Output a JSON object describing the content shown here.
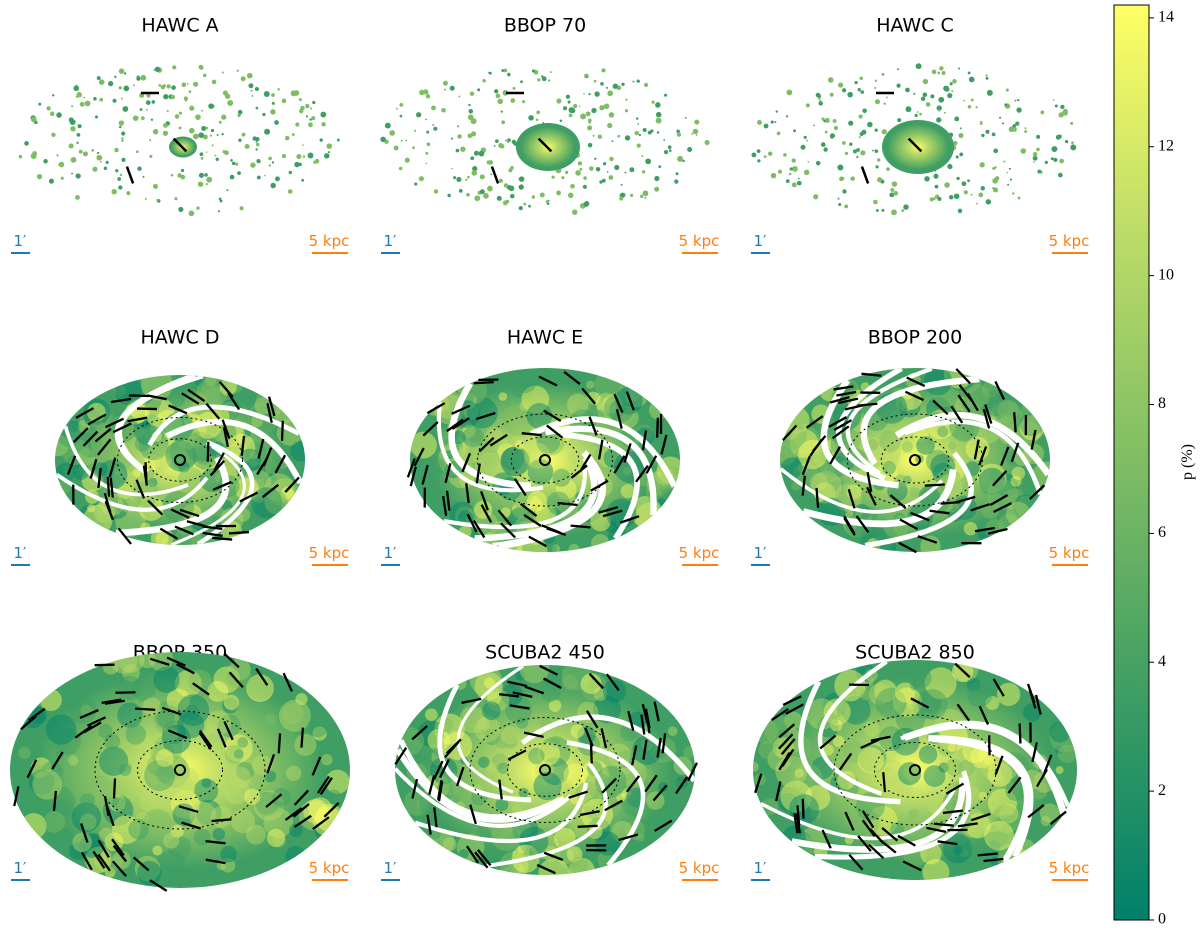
{
  "chart_data": {
    "type": "heatmap",
    "panels": [
      "HAWC A",
      "BBOP 70",
      "HAWC C",
      "HAWC D",
      "HAWC E",
      "BBOP 200",
      "BBOP 350",
      "SCUBA2 450",
      "SCUBA2 850"
    ],
    "scale_bars": {
      "angle": "1′",
      "angle_color": "#1f77b4",
      "distance": "5 kpc",
      "distance_color": "#ff7f0e"
    },
    "colorbar": {
      "label": "p (%)",
      "ylim": [
        0,
        14.2
      ],
      "yticks": [
        0,
        2,
        4,
        6,
        8,
        10,
        12,
        14
      ],
      "colormap": [
        "#00806a",
        "#3f9e63",
        "#7fbd64",
        "#bcdc68",
        "#ffff66"
      ]
    }
  }
}
